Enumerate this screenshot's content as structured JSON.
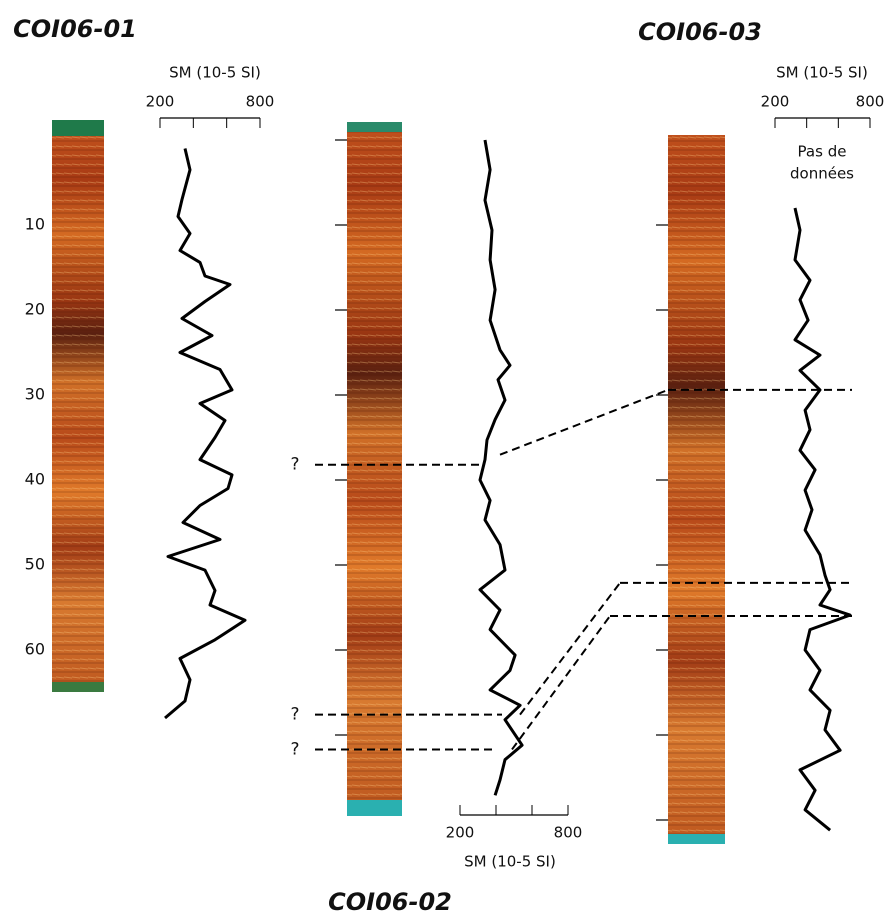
{
  "chart_data": [
    {
      "type": "line",
      "title": "COI06-01",
      "x_label": "SM (10-5 SI)",
      "xlim": [
        200,
        800
      ],
      "xticks": [
        200,
        800
      ],
      "x_minor_ticks": [
        400,
        600
      ],
      "ylim": [
        -2,
        86
      ],
      "y_inverted": true,
      "yticks": [
        10,
        20,
        30,
        40,
        50,
        60
      ],
      "series": [
        {
          "color": "#000000",
          "depth": [
            1,
            3.5,
            7,
            9,
            11,
            13,
            14.4,
            16,
            17,
            19,
            21,
            23,
            25,
            27,
            29.4,
            31,
            33,
            35,
            37.6,
            39.4,
            41,
            43,
            45,
            47,
            49,
            50.6,
            53,
            54.7,
            56.5,
            58.8,
            61,
            63.5,
            66,
            68
          ],
          "values": [
            350,
            380,
            332,
            308,
            380,
            320,
            440,
            470,
            620,
            470,
            332,
            512,
            320,
            560,
            632,
            440,
            590,
            530,
            440,
            632,
            608,
            440,
            338,
            560,
            248,
            470,
            530,
            500,
            710,
            530,
            320,
            380,
            350,
            230
          ]
        }
      ]
    },
    {
      "type": "line",
      "title": "COI06-02",
      "x_label": "SM (10-5 SI)",
      "xlim": [
        200,
        800
      ],
      "xticks": [
        200,
        800
      ],
      "x_minor_ticks": [
        400,
        600
      ],
      "ylim": [
        -2,
        86
      ],
      "y_inverted": true,
      "y_tick_marks": [
        0,
        10,
        20,
        30,
        40,
        50,
        60,
        70
      ],
      "tie_depths": [
        38.2,
        67.6,
        71.7
      ],
      "tie_label": "?",
      "series": [
        {
          "color": "#000000",
          "depth": [
            0,
            3.5,
            7.1,
            10.6,
            14.1,
            17.6,
            21.2,
            24.7,
            26.5,
            28.2,
            30.6,
            32.9,
            35.3,
            37.6,
            40,
            42.4,
            44.7,
            47.6,
            50.6,
            52.9,
            55.3,
            57.6,
            60.6,
            62.4,
            64.7,
            66.5,
            68.2,
            71.2,
            72.9,
            75.3,
            77.1
          ],
          "values": [
            339,
            367,
            339,
            378,
            367,
            395,
            367,
            422,
            478,
            411,
            450,
            395,
            350,
            339,
            311,
            367,
            339,
            422,
            450,
            311,
            422,
            367,
            506,
            478,
            367,
            534,
            450,
            545,
            450,
            422,
            395
          ]
        }
      ]
    },
    {
      "type": "line",
      "title": "COI06-03",
      "x_label": "SM (10-5 SI)",
      "xlim": [
        200,
        800
      ],
      "xticks": [
        200,
        800
      ],
      "x_minor_ticks": [
        400,
        600
      ],
      "ylim": [
        -2,
        86
      ],
      "y_inverted": true,
      "y_tick_marks": [
        10,
        20,
        30,
        40,
        50,
        60,
        70,
        80
      ],
      "annotation_lines": [
        "Pas de",
        "données"
      ],
      "tie_depths": [
        29.4,
        52.1,
        56
      ],
      "series": [
        {
          "color": "#000000",
          "depth": [
            8,
            10.6,
            14.1,
            16.5,
            18.8,
            21.2,
            23.5,
            25.3,
            27.1,
            29.4,
            31.8,
            34.1,
            36.5,
            38.8,
            41.2,
            43.5,
            45.9,
            48.8,
            51.2,
            52.9,
            54.7,
            55.9,
            57.6,
            60,
            62.4,
            64.7,
            67.1,
            69.4,
            71.8,
            74.1,
            76.5,
            78.8,
            81.2
          ],
          "values": [
            326,
            358,
            326,
            421,
            358,
            409,
            326,
            484,
            358,
            484,
            390,
            421,
            358,
            453,
            390,
            434,
            390,
            484,
            516,
            548,
            484,
            674,
            421,
            390,
            484,
            421,
            548,
            516,
            611,
            358,
            453,
            390,
            548
          ]
        }
      ]
    }
  ]
}
